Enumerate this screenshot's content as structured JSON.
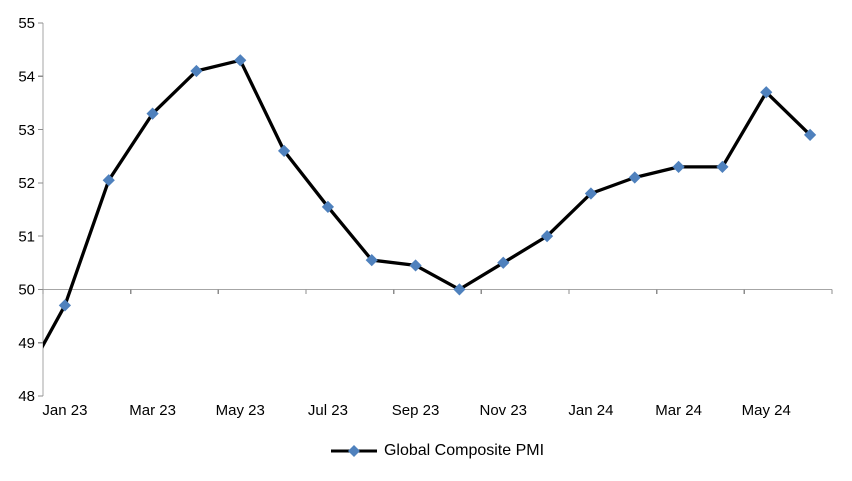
{
  "chart_data": {
    "type": "line",
    "title": "",
    "xlabel": "",
    "ylabel": "",
    "ylim": [
      48,
      55
    ],
    "y_ticks": [
      55,
      54,
      53,
      52,
      51,
      50,
      49,
      48
    ],
    "x_tick_labels": [
      "Jan 23",
      "Mar 23",
      "May 23",
      "Jul 23",
      "Sep 23",
      "Nov 23",
      "Jan 24",
      "Mar 24",
      "May 24"
    ],
    "series": [
      {
        "name": "Global Composite PMI",
        "x": [
          "Dec 22",
          "Jan 23",
          "Feb 23",
          "Mar 23",
          "Apr 23",
          "May 23",
          "Jun 23",
          "Jul 23",
          "Aug 23",
          "Sep 23",
          "Oct 23",
          "Nov 23",
          "Dec 23",
          "Jan 24",
          "Feb 24",
          "Mar 24",
          "Apr 24",
          "May 24",
          "Jun 24"
        ],
        "values": [
          48.2,
          49.7,
          52.05,
          53.3,
          54.1,
          54.3,
          52.6,
          51.55,
          50.55,
          50.45,
          50.0,
          50.5,
          51.0,
          51.8,
          52.1,
          52.3,
          52.3,
          53.7,
          52.9
        ]
      }
    ],
    "layout": {
      "first_point_clipped_at_left_edge": true,
      "x_label_every_n_categories": 2,
      "category_axis_crosses_at": 50,
      "grid": "off",
      "legend_position": "bottom-center"
    },
    "legend": {
      "label": "Global Composite PMI"
    },
    "colors": {
      "line": "#000000",
      "marker": "#4F81BD",
      "axis_line": "#A6A6A6",
      "tick": "#8C8C8C",
      "text": "#000000"
    }
  }
}
